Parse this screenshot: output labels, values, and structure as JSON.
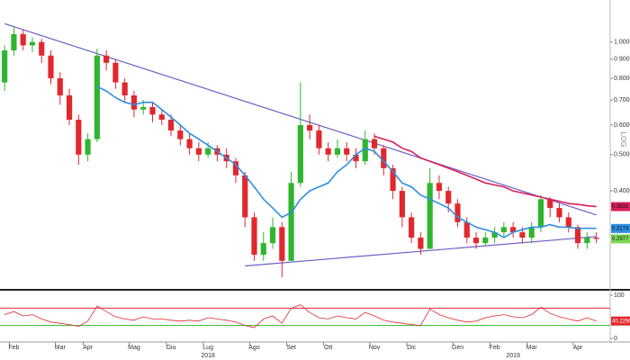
{
  "chart_data": {
    "type": "candlestick",
    "categories": [
      null,
      "Feb",
      null,
      null,
      null,
      null,
      "Mar",
      null,
      null,
      "Apr",
      null,
      null,
      null,
      null,
      "Mag",
      null,
      null,
      null,
      "Giu",
      null,
      null,
      null,
      "Lug",
      null,
      null,
      null,
      null,
      "Ago",
      null,
      null,
      null,
      "Set",
      null,
      null,
      null,
      "Ott",
      null,
      null,
      null,
      null,
      "Nov",
      null,
      null,
      null,
      "Dic",
      null,
      null,
      null,
      null,
      "Gen",
      null,
      null,
      null,
      "Feb",
      null,
      null,
      null,
      "Mar",
      null,
      null,
      null,
      null,
      "Apr",
      null,
      null
    ],
    "year_categories": [
      null,
      null,
      null,
      null,
      null,
      null,
      null,
      null,
      null,
      null,
      null,
      null,
      null,
      null,
      null,
      null,
      null,
      null,
      null,
      null,
      null,
      null,
      "2018",
      null,
      null,
      null,
      null,
      null,
      null,
      null,
      null,
      null,
      null,
      null,
      null,
      null,
      null,
      null,
      null,
      null,
      null,
      null,
      null,
      null,
      null,
      null,
      null,
      null,
      null,
      null,
      null,
      null,
      null,
      null,
      null,
      "2019",
      null,
      null,
      null,
      null,
      null,
      null,
      null,
      null,
      null
    ],
    "open": [
      0.78,
      0.95,
      1.05,
      0.98,
      1.0,
      0.92,
      0.8,
      0.72,
      0.62,
      0.5,
      0.55,
      0.92,
      0.88,
      0.78,
      0.72,
      0.66,
      0.67,
      0.64,
      0.62,
      0.58,
      0.55,
      0.52,
      0.5,
      0.52,
      0.5,
      0.48,
      0.44,
      0.34,
      0.27,
      0.29,
      0.32,
      0.26,
      0.42,
      0.6,
      0.58,
      0.52,
      0.5,
      0.52,
      0.5,
      0.48,
      0.55,
      0.52,
      0.46,
      0.4,
      0.34,
      0.3,
      0.28,
      0.42,
      0.4,
      0.37,
      0.33,
      0.3,
      0.29,
      0.3,
      0.31,
      0.32,
      0.31,
      0.3,
      0.32,
      0.38,
      0.36,
      0.34,
      0.32,
      0.29,
      0.3
    ],
    "high": [
      0.98,
      1.1,
      1.08,
      1.03,
      1.02,
      0.95,
      0.83,
      0.75,
      0.64,
      0.57,
      0.96,
      0.95,
      0.9,
      0.8,
      0.74,
      0.7,
      0.69,
      0.66,
      0.64,
      0.6,
      0.57,
      0.54,
      0.54,
      0.53,
      0.52,
      0.49,
      0.45,
      0.35,
      0.31,
      0.34,
      0.33,
      0.45,
      0.78,
      0.64,
      0.6,
      0.54,
      0.55,
      0.54,
      0.52,
      0.58,
      0.57,
      0.53,
      0.47,
      0.41,
      0.35,
      0.31,
      0.46,
      0.44,
      0.41,
      0.38,
      0.34,
      0.31,
      0.31,
      0.32,
      0.33,
      0.33,
      0.32,
      0.33,
      0.39,
      0.385,
      0.37,
      0.35,
      0.325,
      0.31,
      0.31
    ],
    "low": [
      0.74,
      0.92,
      0.95,
      0.94,
      0.88,
      0.77,
      0.68,
      0.6,
      0.47,
      0.48,
      0.54,
      0.84,
      0.75,
      0.69,
      0.63,
      0.64,
      0.61,
      0.6,
      0.56,
      0.53,
      0.5,
      0.48,
      0.49,
      0.48,
      0.46,
      0.42,
      0.32,
      0.26,
      0.26,
      0.28,
      0.235,
      0.26,
      0.41,
      0.55,
      0.5,
      0.48,
      0.49,
      0.48,
      0.46,
      0.47,
      0.5,
      0.44,
      0.38,
      0.32,
      0.29,
      0.27,
      0.28,
      0.38,
      0.35,
      0.32,
      0.29,
      0.28,
      0.285,
      0.29,
      0.3,
      0.3,
      0.29,
      0.29,
      0.31,
      0.34,
      0.33,
      0.31,
      0.28,
      0.28,
      0.29
    ],
    "close": [
      0.95,
      1.05,
      0.98,
      1.0,
      0.92,
      0.8,
      0.72,
      0.62,
      0.5,
      0.55,
      0.92,
      0.88,
      0.78,
      0.72,
      0.66,
      0.67,
      0.64,
      0.62,
      0.58,
      0.55,
      0.52,
      0.5,
      0.52,
      0.5,
      0.48,
      0.44,
      0.34,
      0.27,
      0.29,
      0.32,
      0.26,
      0.42,
      0.6,
      0.58,
      0.52,
      0.5,
      0.52,
      0.5,
      0.48,
      0.55,
      0.52,
      0.46,
      0.4,
      0.34,
      0.3,
      0.28,
      0.42,
      0.4,
      0.37,
      0.33,
      0.3,
      0.29,
      0.3,
      0.31,
      0.32,
      0.31,
      0.3,
      0.32,
      0.38,
      0.36,
      0.34,
      0.32,
      0.29,
      0.3,
      0.2977
    ],
    "up_color": "#2fb52f",
    "down_color": "#e0282e",
    "last_color": "#7ed957",
    "series": [
      {
        "color": "#2f8fe0",
        "values": [
          null,
          null,
          null,
          null,
          null,
          null,
          null,
          null,
          null,
          null,
          0.76,
          0.74,
          0.71,
          0.69,
          0.68,
          0.69,
          0.69,
          0.66,
          0.63,
          0.6,
          0.57,
          0.55,
          0.53,
          0.51,
          0.49,
          0.47,
          0.44,
          0.41,
          0.38,
          0.36,
          0.34,
          0.35,
          0.38,
          0.4,
          0.41,
          0.42,
          0.45,
          0.47,
          0.5,
          0.52,
          0.51,
          0.48,
          0.45,
          0.42,
          0.41,
          0.39,
          0.38,
          0.37,
          0.36,
          0.34,
          0.33,
          0.32,
          0.315,
          0.31,
          0.3,
          0.31,
          0.315,
          0.32,
          0.32,
          0.325,
          0.32,
          0.32,
          0.317,
          0.318,
          0.3174
        ]
      },
      {
        "color": "#d9205a",
        "values": [
          null,
          null,
          null,
          null,
          null,
          null,
          null,
          null,
          null,
          null,
          null,
          null,
          null,
          null,
          null,
          null,
          null,
          null,
          null,
          null,
          null,
          null,
          null,
          null,
          null,
          null,
          null,
          null,
          null,
          null,
          null,
          null,
          null,
          null,
          null,
          null,
          null,
          null,
          null,
          null,
          0.56,
          0.55,
          0.54,
          0.52,
          0.51,
          0.49,
          0.48,
          0.47,
          0.46,
          0.45,
          0.44,
          0.43,
          0.42,
          0.415,
          0.41,
          0.4,
          0.395,
          0.39,
          0.385,
          0.38,
          0.375,
          0.37,
          0.368,
          0.365,
          0.3631
        ]
      }
    ],
    "trendlines": [
      {
        "color": "#6b5fc7",
        "points": [
          [
            0,
            1.12
          ],
          [
            64,
            0.345
          ]
        ]
      },
      {
        "color": "#6b5fc7",
        "points": [
          [
            26,
            0.252
          ],
          [
            64,
            0.302
          ]
        ]
      }
    ],
    "log_scale": true,
    "ylim": [
      0.22,
      1.26
    ],
    "yticks": [
      {
        "value": 1.0,
        "label": "1.0000"
      },
      {
        "value": 0.9,
        "label": "0.9000"
      },
      {
        "value": 0.8,
        "label": "0.8000"
      },
      {
        "value": 0.7,
        "label": "0.7000"
      },
      {
        "value": 0.6,
        "label": "0.6000"
      },
      {
        "value": 0.5,
        "label": "0.5000"
      },
      {
        "value": 0.4,
        "label": "0.4000"
      }
    ],
    "y_axis_label": "LOG",
    "oscillator": {
      "color": "#e0282e",
      "values": [
        55,
        62,
        52,
        55,
        45,
        38,
        35,
        32,
        28,
        40,
        75,
        62,
        50,
        45,
        42,
        50,
        45,
        45,
        42,
        40,
        42,
        40,
        48,
        45,
        42,
        38,
        30,
        25,
        45,
        52,
        35,
        70,
        78,
        60,
        48,
        45,
        52,
        48,
        45,
        60,
        52,
        42,
        38,
        35,
        32,
        30,
        68,
        55,
        48,
        42,
        38,
        40,
        48,
        52,
        55,
        50,
        48,
        55,
        72,
        58,
        50,
        45,
        40,
        48,
        40.229
      ],
      "last_label": "40.2290",
      "ylim": [
        0,
        100
      ],
      "yticks": [
        0,
        100
      ],
      "levels": [
        {
          "value": 70,
          "color": "#e0282e"
        },
        {
          "value": 30,
          "color": "#2fb52f"
        }
      ]
    }
  }
}
